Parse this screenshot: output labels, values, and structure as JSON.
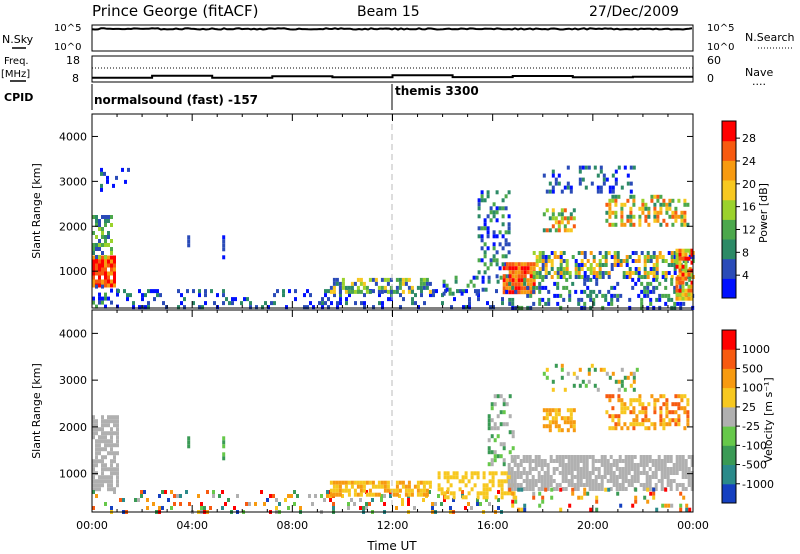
{
  "header": {
    "station": "Prince George (fitACF)",
    "beam": "Beam 15",
    "date": "27/Dec/2009"
  },
  "left_labels": {
    "nsky": "N.Sky",
    "freq": "Freq.",
    "freq_unit": "[MHz]",
    "cpid": "CPID"
  },
  "right_labels": {
    "nsearch": "N.Search",
    "nave": "Nave",
    "nave_dots": "····"
  },
  "nsky_ticks": [
    "10^5",
    "10^0"
  ],
  "nsearch_ticks": [
    "10^5",
    "10^0"
  ],
  "freq_ticks": [
    "18",
    "8"
  ],
  "nave_ticks": [
    "60",
    "0"
  ],
  "cpid_segments": [
    {
      "label": "normalsound (fast) -157",
      "start": 0,
      "end": 12
    },
    {
      "label": "themis 3300",
      "start": 12,
      "end": 24
    }
  ],
  "chart_data": [
    {
      "type": "heatmap",
      "name": "power",
      "ylabel": "Slant Range [km]",
      "yticks": [
        1000,
        2000,
        3000,
        4000
      ],
      "ylim": [
        180,
        4500
      ],
      "colorbar_label": "Power [dB]",
      "colorbar_ticks": [
        4,
        8,
        12,
        16,
        20,
        24,
        28
      ],
      "colorbar_range": [
        0,
        31
      ],
      "colors": [
        "#0010ff",
        "#2a4bb8",
        "#2c8a66",
        "#4ca84c",
        "#9bd22c",
        "#f7c820",
        "#f79a10",
        "#f75a10",
        "#ff0000"
      ],
      "xticks": [
        "00:00",
        "04:00",
        "08:00",
        "12:00",
        "16:00",
        "20:00",
        "00:00"
      ],
      "xlim": [
        0,
        24
      ]
    },
    {
      "type": "heatmap",
      "name": "velocity",
      "ylabel": "Slant Range [km]",
      "yticks": [
        1000,
        2000,
        3000,
        4000
      ],
      "ylim": [
        180,
        4500
      ],
      "colorbar_label": "Velocity [m s⁻¹]",
      "colorbar_ticks": [
        "1000",
        "500",
        "100",
        "25",
        "-25",
        "-100",
        "-500",
        "-1000"
      ],
      "colors": [
        "#1540c0",
        "#2a8a8a",
        "#3a9a55",
        "#66c84a",
        "#b0b0b0",
        "#f7c820",
        "#f79a10",
        "#f75a10",
        "#ff0000"
      ],
      "xlabel": "Time UT",
      "xticks": [
        "00:00",
        "04:00",
        "08:00",
        "12:00",
        "16:00",
        "20:00",
        "00:00"
      ],
      "xlim": [
        0,
        24
      ]
    }
  ],
  "regions_power": [
    {
      "t0": 0.0,
      "t1": 0.9,
      "r0": 700,
      "r1": 1350,
      "cmin": 6,
      "cmax": 8,
      "dens": 0.9
    },
    {
      "t0": 0.0,
      "t1": 0.8,
      "r0": 1350,
      "r1": 2250,
      "cmin": 1,
      "cmax": 4,
      "dens": 0.55
    },
    {
      "t0": 0.0,
      "t1": 1.0,
      "r0": 200,
      "r1": 700,
      "cmin": 0,
      "cmax": 3,
      "dens": 0.45
    },
    {
      "t0": 1.0,
      "t1": 16.5,
      "r0": 200,
      "r1": 600,
      "cmin": 0,
      "cmax": 2,
      "dens": 0.25
    },
    {
      "t0": 9.5,
      "t1": 13.5,
      "r0": 550,
      "r1": 850,
      "cmin": 1,
      "cmax": 5,
      "dens": 0.55
    },
    {
      "t0": 14.0,
      "t1": 16.3,
      "r0": 500,
      "r1": 900,
      "cmin": 0,
      "cmax": 3,
      "dens": 0.35
    },
    {
      "t0": 15.4,
      "t1": 16.6,
      "r0": 900,
      "r1": 2800,
      "cmin": 0,
      "cmax": 3,
      "dens": 0.3
    },
    {
      "t0": 16.4,
      "t1": 17.6,
      "r0": 500,
      "r1": 1200,
      "cmin": 6,
      "cmax": 8,
      "dens": 0.9
    },
    {
      "t0": 17.6,
      "t1": 24.0,
      "r0": 850,
      "r1": 1450,
      "cmin": 0,
      "cmax": 6,
      "dens": 0.6
    },
    {
      "t0": 16.5,
      "t1": 24.0,
      "r0": 200,
      "r1": 850,
      "cmin": 0,
      "cmax": 3,
      "dens": 0.3
    },
    {
      "t0": 18.0,
      "t1": 19.3,
      "r0": 1900,
      "r1": 2400,
      "cmin": 2,
      "cmax": 7,
      "dens": 0.55
    },
    {
      "t0": 20.5,
      "t1": 23.8,
      "r0": 2000,
      "r1": 2700,
      "cmin": 2,
      "cmax": 7,
      "dens": 0.5
    },
    {
      "t0": 18.0,
      "t1": 21.8,
      "r0": 2800,
      "r1": 3350,
      "cmin": 0,
      "cmax": 2,
      "dens": 0.2
    },
    {
      "t0": 23.3,
      "t1": 24.0,
      "r0": 400,
      "r1": 1500,
      "cmin": 4,
      "cmax": 8,
      "dens": 0.8
    },
    {
      "t0": 0.2,
      "t1": 1.4,
      "r0": 2800,
      "r1": 3300,
      "cmin": 0,
      "cmax": 2,
      "dens": 0.15
    },
    {
      "t0": 3.8,
      "t1": 3.9,
      "r0": 1600,
      "r1": 1800,
      "cmin": 0,
      "cmax": 1,
      "dens": 0.9
    },
    {
      "t0": 5.2,
      "t1": 5.3,
      "r0": 1300,
      "r1": 1800,
      "cmin": 0,
      "cmax": 1,
      "dens": 0.9
    }
  ],
  "regions_velocity": [
    {
      "t0": 0.0,
      "t1": 1.0,
      "r0": 700,
      "r1": 2250,
      "cmin": 4,
      "cmax": 4,
      "dens": 0.7
    },
    {
      "t0": 0.0,
      "t1": 16.5,
      "r0": 200,
      "r1": 650,
      "cmin": 0,
      "cmax": 8,
      "dens": 0.18
    },
    {
      "t0": 9.5,
      "t1": 13.5,
      "r0": 550,
      "r1": 850,
      "cmin": 5,
      "cmax": 6,
      "dens": 0.6
    },
    {
      "t0": 13.8,
      "t1": 16.8,
      "r0": 500,
      "r1": 1050,
      "cmin": 5,
      "cmax": 5,
      "dens": 0.5
    },
    {
      "t0": 15.8,
      "t1": 16.8,
      "r0": 1200,
      "r1": 2700,
      "cmin": 2,
      "cmax": 4,
      "dens": 0.25
    },
    {
      "t0": 16.6,
      "t1": 24.0,
      "r0": 700,
      "r1": 1400,
      "cmin": 4,
      "cmax": 4,
      "dens": 0.7
    },
    {
      "t0": 16.5,
      "t1": 24.0,
      "r0": 200,
      "r1": 700,
      "cmin": 0,
      "cmax": 8,
      "dens": 0.2
    },
    {
      "t0": 18.0,
      "t1": 19.3,
      "r0": 1900,
      "r1": 2400,
      "cmin": 5,
      "cmax": 6,
      "dens": 0.55
    },
    {
      "t0": 20.5,
      "t1": 23.8,
      "r0": 2000,
      "r1": 2700,
      "cmin": 5,
      "cmax": 7,
      "dens": 0.5
    },
    {
      "t0": 18.0,
      "t1": 21.8,
      "r0": 2800,
      "r1": 3350,
      "cmin": 2,
      "cmax": 6,
      "dens": 0.2
    },
    {
      "t0": 3.8,
      "t1": 3.9,
      "r0": 1600,
      "r1": 1800,
      "cmin": 2,
      "cmax": 3,
      "dens": 0.9
    },
    {
      "t0": 5.2,
      "t1": 5.3,
      "r0": 1300,
      "r1": 1800,
      "cmin": 2,
      "cmax": 3,
      "dens": 0.9
    }
  ],
  "nsky_series": {
    "level": 0.85,
    "noise": 0.05
  },
  "freq_series": {
    "values": [
      9.6,
      10.4,
      9.6,
      10.2,
      9.8,
      10.6,
      9.9,
      10.3,
      9.8,
      10.0
    ]
  },
  "nave_series": {
    "level": 0.67
  }
}
